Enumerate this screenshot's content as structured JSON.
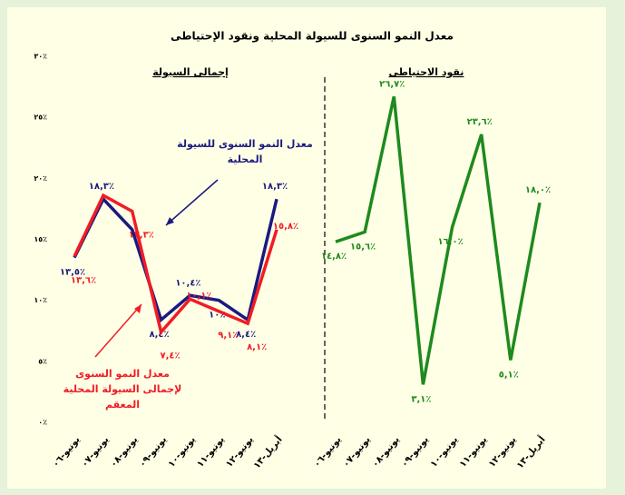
{
  "title": "معدل النمو السنوى للسيولة المحلية ونقود الإحتياطى",
  "chart_data": [
    {
      "type": "line",
      "title": "إجمالى السيولة",
      "categories": [
        "يونيو-٠٦",
        "يونيو-٠٧",
        "يونيو-٠٨",
        "يونيو-٠٩",
        "يونيو-١٠",
        "يونيو-١١",
        "يونيو-١٢",
        "أبريل-١٣"
      ],
      "ylim": [
        0,
        30
      ],
      "yticks": [
        {
          "value": 0,
          "label": "٠٪"
        },
        {
          "value": 5,
          "label": "٥٪"
        },
        {
          "value": 10,
          "label": "١٠٪"
        },
        {
          "value": 15,
          "label": "١٥٪"
        },
        {
          "value": 20,
          "label": "٢٠٪"
        },
        {
          "value": 25,
          "label": "٢٥٪"
        },
        {
          "value": 30,
          "label": "٣٠٪"
        }
      ],
      "series": [
        {
          "name": "معدل النمو السنوى للسيولة المحلية",
          "color": "#1a1a80",
          "values": [
            13.5,
            18.3,
            15.8,
            8.4,
            10.4,
            10,
            8.4,
            18.3
          ],
          "value_labels": [
            "١٣,٥٪",
            "١٨,٣٪",
            null,
            "٨,٤٪",
            "١٠,٤٪",
            "١٠٪",
            "٨,٤٪",
            "١٨,٣٪"
          ]
        },
        {
          "name": "معدل النمو السنوى لإجمالى السيولة المحلية المعقم",
          "color": "#f01c24",
          "values": [
            13.6,
            18.6,
            17.3,
            7.4,
            10.1,
            9.1,
            8.1,
            15.8
          ],
          "value_labels": [
            "١٣,٦٪",
            null,
            "١٧,٣٪",
            "٧,٤٪",
            "١٠,١٪",
            "٩,١٪",
            "٨,١٪",
            "١٥,٨٪"
          ]
        }
      ]
    },
    {
      "type": "line",
      "title": "نقود الاحتياطى",
      "categories": [
        "يونيو-٠٦",
        "يونيو-٠٧",
        "يونيو-٠٨",
        "يونيو-٠٩",
        "يونيو-١٠",
        "يونيو-١١",
        "يونيو-١٢",
        "أبريل-١٣"
      ],
      "ylim": [
        0,
        30
      ],
      "series": [
        {
          "color": "#1e8a1e",
          "values": [
            14.8,
            15.6,
            26.7,
            3.1,
            16.0,
            23.6,
            5.1,
            18.0
          ],
          "value_labels": [
            "١٤,٨٪",
            "١٥,٦٪",
            "٢٦,٧٪",
            "٣,١٪",
            "١٦,٠٪",
            "٢٣,٦٪",
            "٥,١٪",
            "١٨,٠٪"
          ]
        }
      ]
    }
  ]
}
